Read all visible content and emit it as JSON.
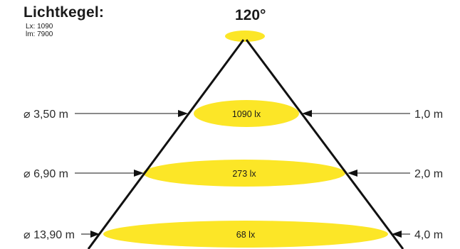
{
  "header": {
    "title": "Lichtkegel:",
    "lx": "Lx: 1090",
    "lm": "lm: 7900",
    "angle": "120°"
  },
  "levels": [
    {
      "diameter": "⌀ 3,50 m",
      "lux": "1090 lx",
      "distance": "1,0 m"
    },
    {
      "diameter": "⌀ 6,90 m",
      "lux": "273 lx",
      "distance": "2,0 m"
    },
    {
      "diameter": "⌀ 13,90 m",
      "lux": "68 lx",
      "distance": "4,0 m"
    }
  ],
  "colors": {
    "ellipse": "#fce627",
    "lines": "#111111",
    "dim_lines": "#444444",
    "text": "#1a1a1a"
  }
}
